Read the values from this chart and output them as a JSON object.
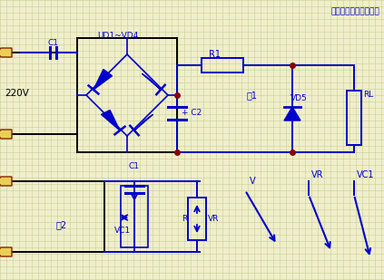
{
  "bg_color": "#f0eecc",
  "grid_color": "#c8d090",
  "line_color": "#0000cc",
  "text_color": "#0000cc",
  "title": "电子制作天地收藏整理",
  "fig1_label": "图1",
  "fig2_label": "图2",
  "label_220v": "220V",
  "label_c1_top": "C1",
  "label_ud": "UD1~VD4",
  "label_r1": "R1",
  "label_c2": "+ C2",
  "label_vd5": "VD5",
  "label_rl": "RL",
  "label_c1_bot": "C1",
  "label_vc1_left": "VC1",
  "label_r": "R",
  "label_vr_mid": "VR",
  "label_v": "V",
  "label_vr_right": "VR",
  "label_vc1_right": "VC1",
  "dot_color": "#880000"
}
